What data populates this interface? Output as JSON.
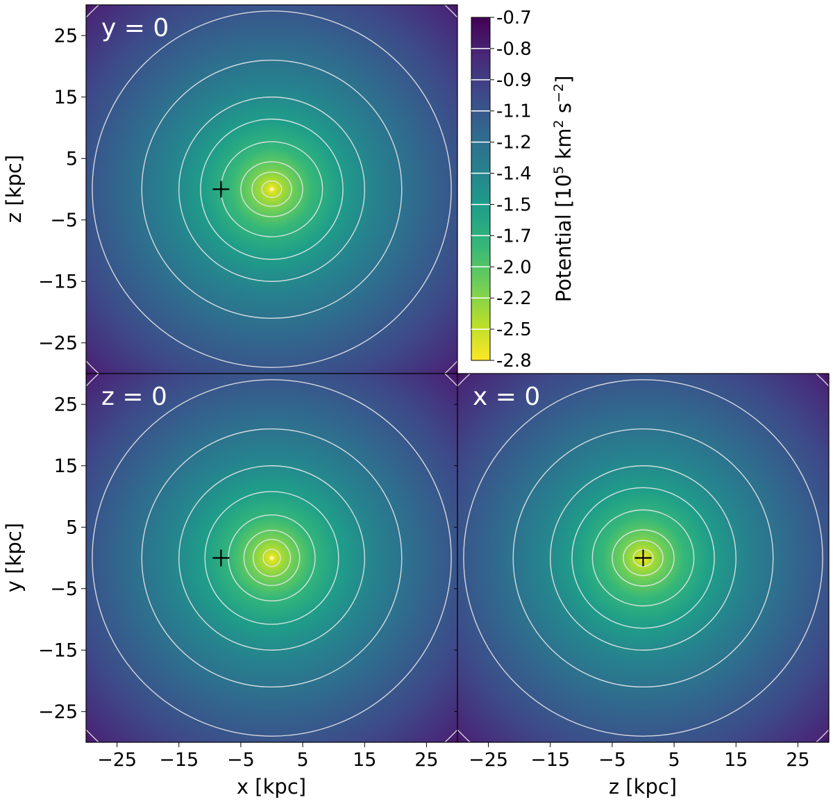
{
  "chart_data": [
    {
      "type": "heatmap",
      "panel_label": "y = 0",
      "xlabel": "",
      "ylabel": "z [kpc]",
      "xlim": [
        -30,
        30
      ],
      "ylim": [
        -30,
        30
      ],
      "x_ticks": [
        -25,
        -15,
        -5,
        5,
        15,
        25
      ],
      "y_ticks": [
        -25,
        -15,
        -5,
        5,
        15,
        25
      ],
      "x_tick_labels_visible": false,
      "y_tick_labels": [
        "−25",
        "−15",
        "−5",
        "5",
        "15",
        "25"
      ],
      "flattening": 0.75,
      "contours": [
        {
          "a": 1.6
        },
        {
          "a": 3.2
        },
        {
          "a": 5.0
        },
        {
          "a": 8.2
        },
        {
          "a": 11.5
        },
        {
          "a": 15.0
        },
        {
          "a": 21.0
        },
        {
          "a": 29.0
        },
        {
          "a": 41.0
        }
      ],
      "marker": {
        "x": -8.2,
        "y": 0,
        "symbol": "+"
      }
    },
    {
      "type": "heatmap",
      "panel_label": "z = 0",
      "xlabel": "x [kpc]",
      "ylabel": "y [kpc]",
      "xlim": [
        -30,
        30
      ],
      "ylim": [
        -30,
        30
      ],
      "x_ticks": [
        -25,
        -15,
        -5,
        5,
        15,
        25
      ],
      "y_ticks": [
        -25,
        -15,
        -5,
        5,
        15,
        25
      ],
      "x_tick_labels": [
        "−25",
        "−15",
        "−5",
        "5",
        "15",
        "25"
      ],
      "y_tick_labels": [
        "−25",
        "−15",
        "−5",
        "5",
        "15",
        "25"
      ],
      "flattening": 1.0,
      "contours": [
        {
          "a": 1.4
        },
        {
          "a": 3.0
        },
        {
          "a": 4.5
        },
        {
          "a": 7.0
        },
        {
          "a": 10.8
        },
        {
          "a": 15.0
        },
        {
          "a": 21.0
        },
        {
          "a": 29.0
        },
        {
          "a": 41.0
        }
      ],
      "marker": {
        "x": -8.2,
        "y": 0,
        "symbol": "+"
      }
    },
    {
      "type": "heatmap",
      "panel_label": "x = 0",
      "xlabel": "z [kpc]",
      "ylabel": "",
      "xlim": [
        -30,
        30
      ],
      "ylim": [
        -30,
        30
      ],
      "x_ticks": [
        -25,
        -15,
        -5,
        5,
        15,
        25
      ],
      "y_ticks": [
        -25,
        -15,
        -5,
        5,
        15,
        25
      ],
      "x_tick_labels": [
        "−25",
        "−15",
        "−5",
        "5",
        "15",
        "25"
      ],
      "y_tick_labels_visible": false,
      "flattening": 0.75,
      "transpose": true,
      "contours": [
        {
          "a": 1.6
        },
        {
          "a": 3.2
        },
        {
          "a": 5.0
        },
        {
          "a": 8.2
        },
        {
          "a": 11.5
        },
        {
          "a": 15.0
        },
        {
          "a": 21.0
        },
        {
          "a": 29.0
        },
        {
          "a": 41.0
        }
      ],
      "marker": {
        "x": 0,
        "y": 0,
        "symbol": "+"
      }
    }
  ],
  "colorbar": {
    "label_main": "Potential [10",
    "label_exp1": "5",
    "label_mid": " km",
    "label_exp2": "2",
    "label_s": " s",
    "label_exp3": "−2",
    "label_end": "]",
    "tick_labels": [
      "-0.7",
      "-0.8",
      "-0.9",
      "-1.1",
      "-1.2",
      "-1.4",
      "-1.5",
      "-1.7",
      "-2.0",
      "-2.2",
      "-2.5",
      "-2.8"
    ],
    "colormap": "viridis",
    "colors": [
      "#440154",
      "#482878",
      "#3e4989",
      "#31688e",
      "#26828e",
      "#1f9e89",
      "#35b779",
      "#6ece58",
      "#b5de2b",
      "#fde725"
    ]
  }
}
